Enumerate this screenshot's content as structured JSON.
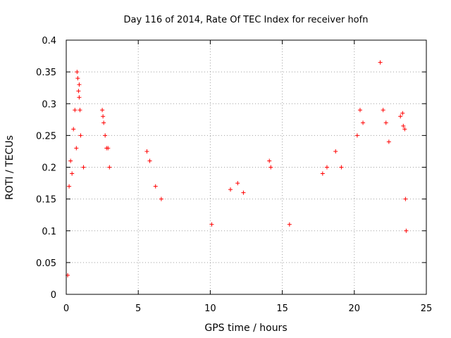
{
  "chart_data": {
    "type": "scatter",
    "title": "Day 116 of 2014, Rate Of TEC Index for receiver hofn",
    "xlabel": "GPS time / hours",
    "ylabel": "ROTI / TECUs",
    "xlim": [
      0,
      25
    ],
    "ylim": [
      0,
      0.4
    ],
    "xticks": [
      "0",
      "5",
      "10",
      "15",
      "20",
      "25"
    ],
    "yticks": [
      "0",
      "0.05",
      "0.1",
      "0.15",
      "0.2",
      "0.25",
      "0.3",
      "0.35",
      "0.4"
    ],
    "grid": true,
    "marker": "+",
    "color": "#ff0000",
    "series": [
      {
        "points": [
          [
            0.1,
            0.03
          ],
          [
            0.2,
            0.17
          ],
          [
            0.3,
            0.21
          ],
          [
            0.4,
            0.19
          ],
          [
            0.5,
            0.26
          ],
          [
            0.6,
            0.29
          ],
          [
            0.75,
            0.35
          ],
          [
            0.8,
            0.34
          ],
          [
            0.85,
            0.32
          ],
          [
            0.9,
            0.33
          ],
          [
            0.9,
            0.31
          ],
          [
            0.95,
            0.29
          ],
          [
            0.7,
            0.23
          ],
          [
            1.0,
            0.25
          ],
          [
            1.2,
            0.2
          ],
          [
            2.5,
            0.29
          ],
          [
            2.55,
            0.28
          ],
          [
            2.6,
            0.27
          ],
          [
            2.7,
            0.25
          ],
          [
            2.8,
            0.23
          ],
          [
            2.9,
            0.23
          ],
          [
            3.0,
            0.2
          ],
          [
            5.6,
            0.225
          ],
          [
            5.8,
            0.21
          ],
          [
            6.2,
            0.17
          ],
          [
            6.6,
            0.15
          ],
          [
            10.1,
            0.11
          ],
          [
            11.4,
            0.165
          ],
          [
            11.9,
            0.175
          ],
          [
            12.3,
            0.16
          ],
          [
            14.1,
            0.21
          ],
          [
            14.2,
            0.2
          ],
          [
            15.5,
            0.11
          ],
          [
            17.8,
            0.19
          ],
          [
            18.1,
            0.2
          ],
          [
            18.7,
            0.225
          ],
          [
            19.1,
            0.2
          ],
          [
            20.2,
            0.25
          ],
          [
            20.4,
            0.29
          ],
          [
            20.6,
            0.27
          ],
          [
            21.8,
            0.365
          ],
          [
            22.0,
            0.29
          ],
          [
            22.2,
            0.27
          ],
          [
            22.4,
            0.24
          ],
          [
            23.2,
            0.28
          ],
          [
            23.35,
            0.285
          ],
          [
            23.4,
            0.265
          ],
          [
            23.5,
            0.26
          ],
          [
            23.55,
            0.15
          ],
          [
            23.6,
            0.1
          ]
        ]
      }
    ]
  }
}
